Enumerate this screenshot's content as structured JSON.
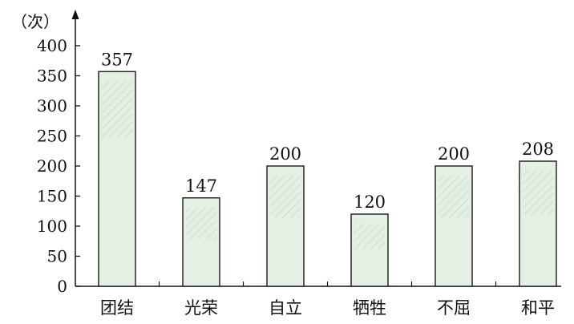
{
  "chart_data": {
    "type": "bar",
    "ylabel": "（次）",
    "categories": [
      "团结",
      "光荣",
      "自立",
      "牺牲",
      "不屈",
      "和平"
    ],
    "values": [
      357,
      147,
      200,
      120,
      200,
      208
    ],
    "data_labels": [
      "357",
      "147",
      "200",
      "120",
      "200",
      "208"
    ],
    "yticks": [
      0,
      50,
      100,
      150,
      200,
      250,
      300,
      350,
      400
    ],
    "ytick_labels": [
      "0",
      "50",
      "100",
      "150",
      "200",
      "250",
      "300",
      "350",
      "400"
    ],
    "ylim": [
      0,
      420
    ],
    "grid": false,
    "legend": "none",
    "colors": {
      "bar_fill": "#e4f0e3",
      "bar_stroke": "#1a1a1a",
      "hatch": "#9fb4a0",
      "axis": "#111111"
    }
  }
}
